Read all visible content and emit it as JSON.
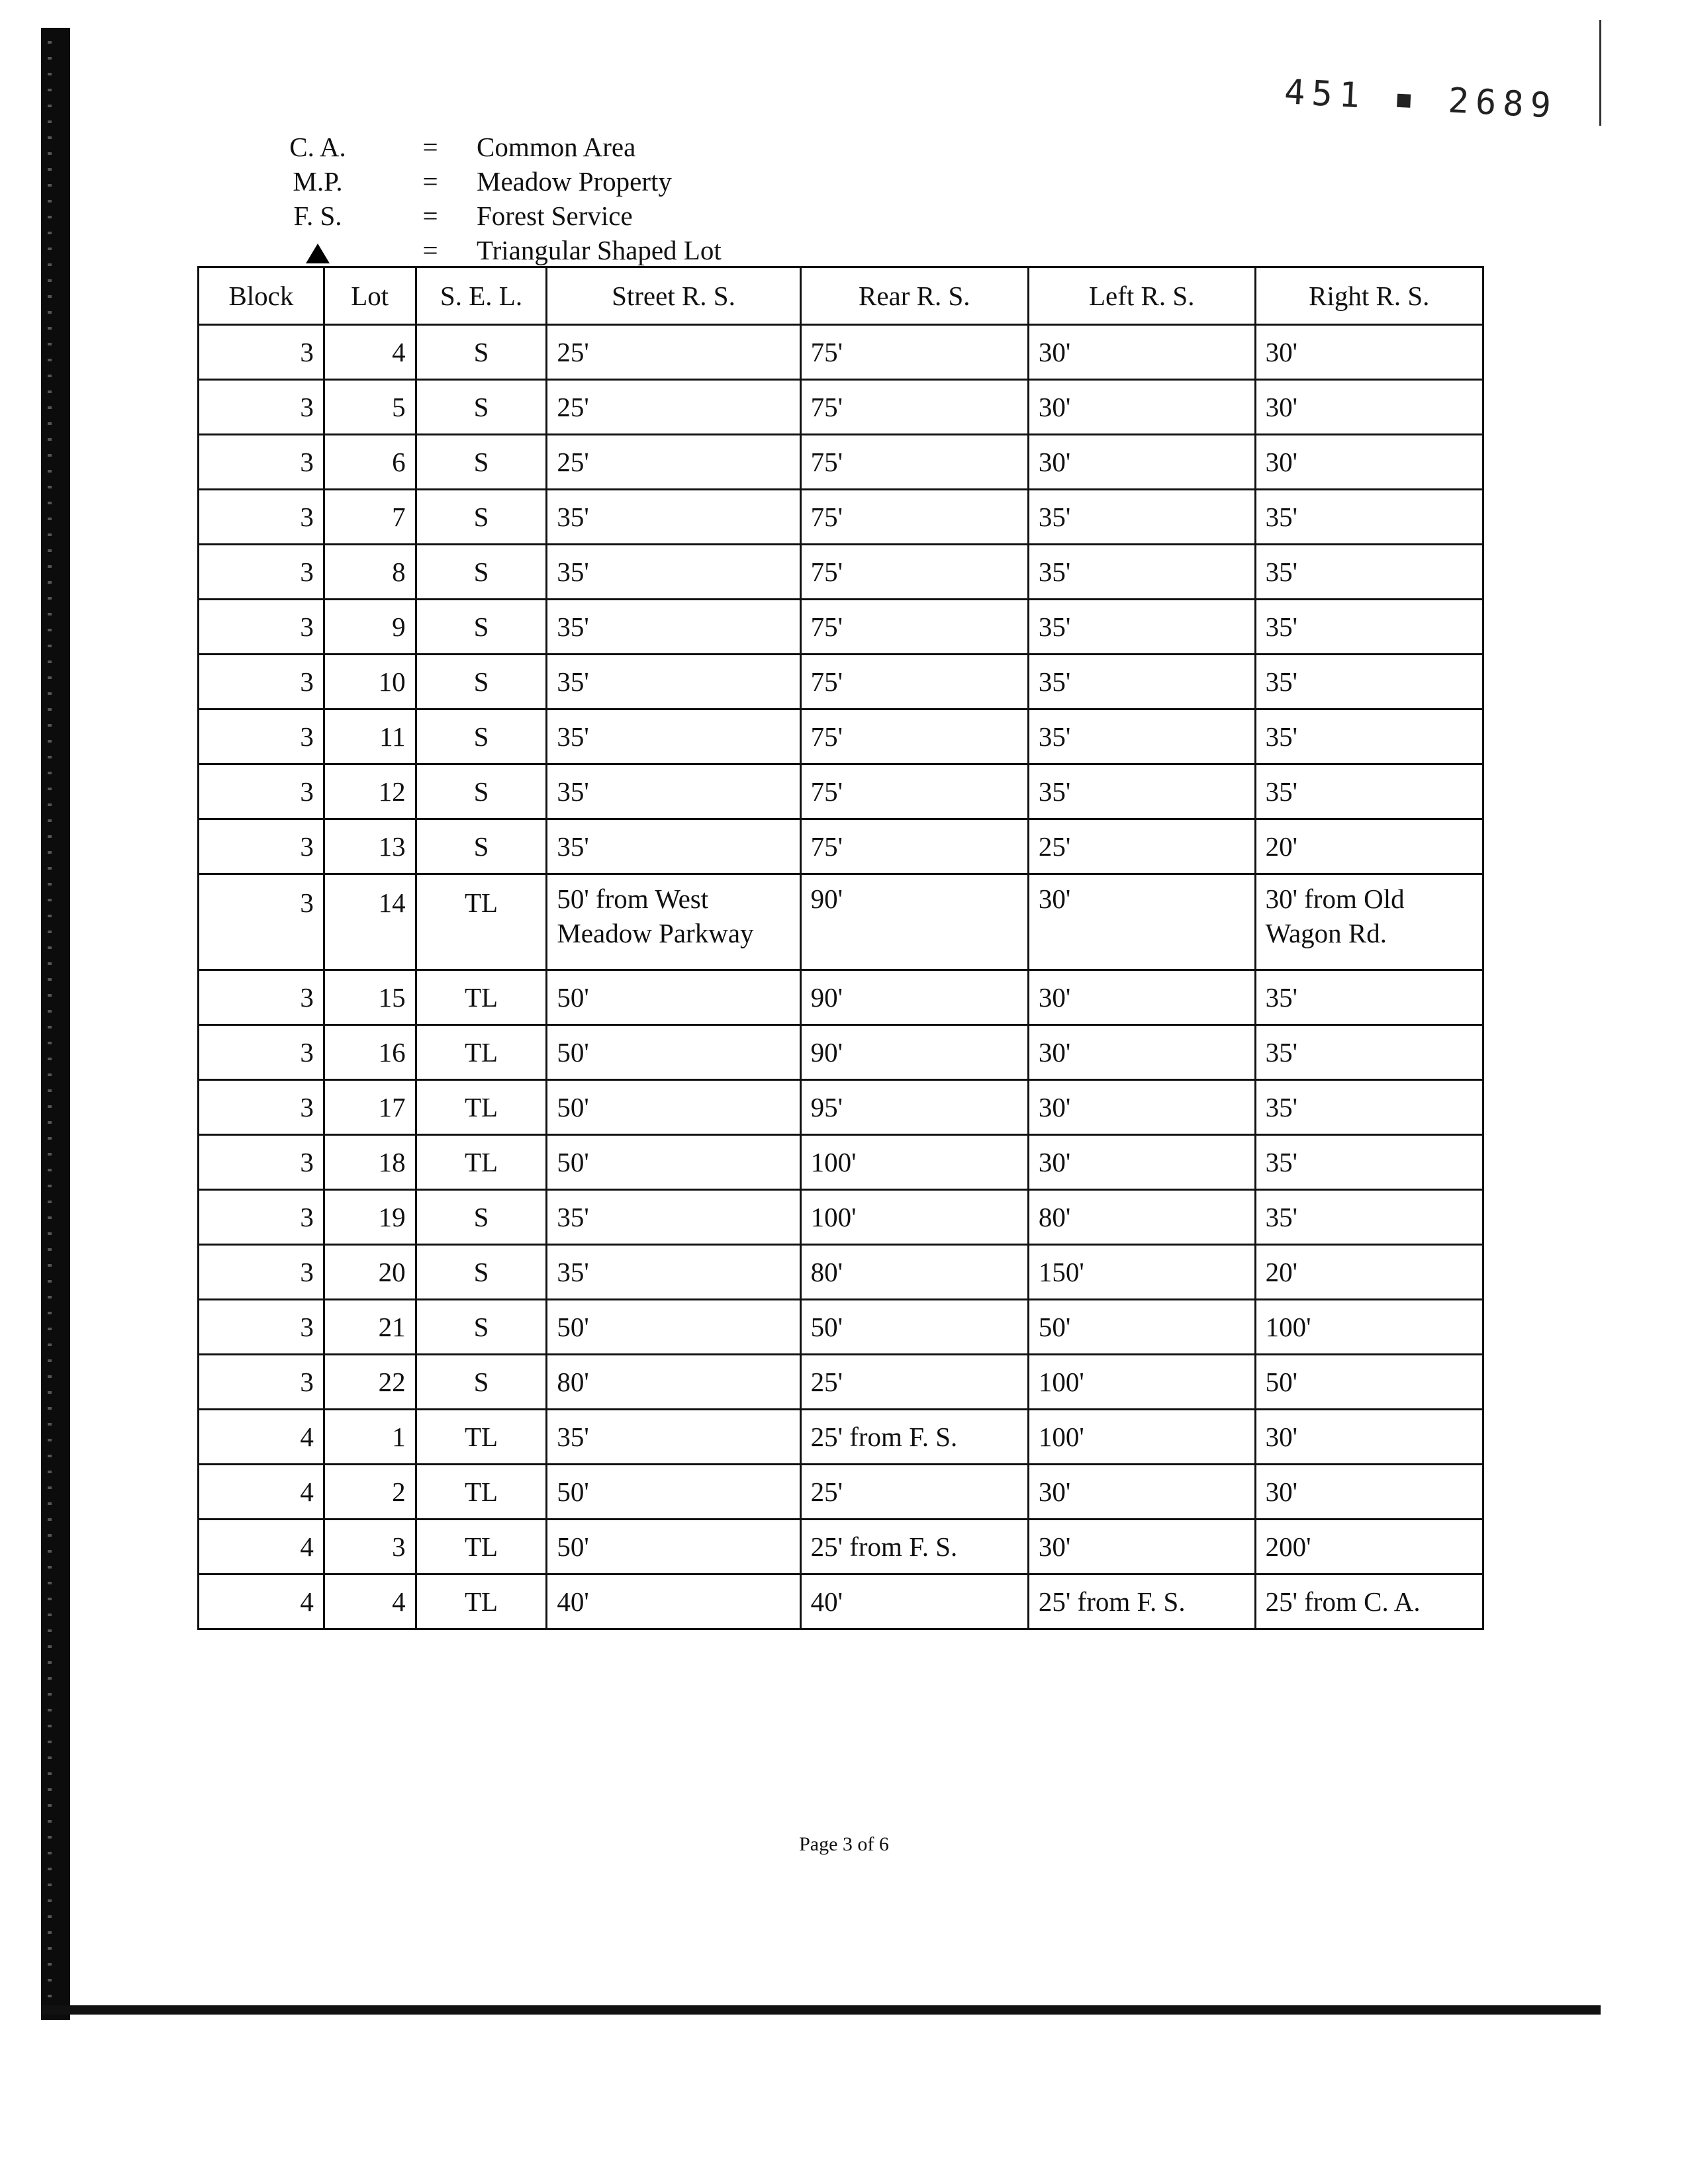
{
  "stamp": "451 ▪ 2689",
  "legend": [
    {
      "abbr": "C. A.",
      "eq": "=",
      "def": "Common Area"
    },
    {
      "abbr": "M.P.",
      "eq": "=",
      "def": "Meadow Property"
    },
    {
      "abbr": "F. S.",
      "eq": "=",
      "def": "Forest Service"
    },
    {
      "abbr": "",
      "icon": "triangle-icon",
      "eq": "=",
      "def": "Triangular Shaped Lot"
    }
  ],
  "table": {
    "headers": [
      "Block",
      "Lot",
      "S. E. L.",
      "Street R. S.",
      "Rear R. S.",
      "Left R. S.",
      "Right R. S."
    ],
    "rows": [
      [
        "3",
        "4",
        "S",
        "25'",
        "75'",
        "30'",
        "30'"
      ],
      [
        "3",
        "5",
        "S",
        "25'",
        "75'",
        "30'",
        "30'"
      ],
      [
        "3",
        "6",
        "S",
        "25'",
        "75'",
        "30'",
        "30'"
      ],
      [
        "3",
        "7",
        "S",
        "35'",
        "75'",
        "35'",
        "35'"
      ],
      [
        "3",
        "8",
        "S",
        "35'",
        "75'",
        "35'",
        "35'"
      ],
      [
        "3",
        "9",
        "S",
        "35'",
        "75'",
        "35'",
        "35'"
      ],
      [
        "3",
        "10",
        "S",
        "35'",
        "75'",
        "35'",
        "35'"
      ],
      [
        "3",
        "11",
        "S",
        "35'",
        "75'",
        "35'",
        "35'"
      ],
      [
        "3",
        "12",
        "S",
        "35'",
        "75'",
        "35'",
        "35'"
      ],
      [
        "3",
        "13",
        "S",
        "35'",
        "75'",
        "25'",
        "20'"
      ],
      [
        "3",
        "14",
        "TL",
        "50' from West Meadow Parkway",
        "90'",
        "30'",
        "30' from Old Wagon Rd."
      ],
      [
        "3",
        "15",
        "TL",
        "50'",
        "90'",
        "30'",
        "35'"
      ],
      [
        "3",
        "16",
        "TL",
        "50'",
        "90'",
        "30'",
        "35'"
      ],
      [
        "3",
        "17",
        "TL",
        "50'",
        "95'",
        "30'",
        "35'"
      ],
      [
        "3",
        "18",
        "TL",
        "50'",
        "100'",
        "30'",
        "35'"
      ],
      [
        "3",
        "19",
        "S",
        "35'",
        "100'",
        "80'",
        "35'"
      ],
      [
        "3",
        "20",
        "S",
        "35'",
        "80'",
        "150'",
        "20'"
      ],
      [
        "3",
        "21",
        "S",
        "50'",
        "50'",
        "50'",
        "100'"
      ],
      [
        "3",
        "22",
        "S",
        "80'",
        "25'",
        "100'",
        "50'"
      ],
      [
        "4",
        "1",
        "TL",
        "35'",
        "25' from F. S.",
        "100'",
        "30'"
      ],
      [
        "4",
        "2",
        "TL",
        "50'",
        "25'",
        "30'",
        "30'"
      ],
      [
        "4",
        "3",
        "TL",
        "50'",
        "25' from F. S.",
        "30'",
        "200'"
      ],
      [
        "4",
        "4",
        "TL",
        "40'",
        "40'",
        "25' from F. S.",
        "25' from C. A."
      ]
    ]
  },
  "footer": "Page 3 of 6"
}
